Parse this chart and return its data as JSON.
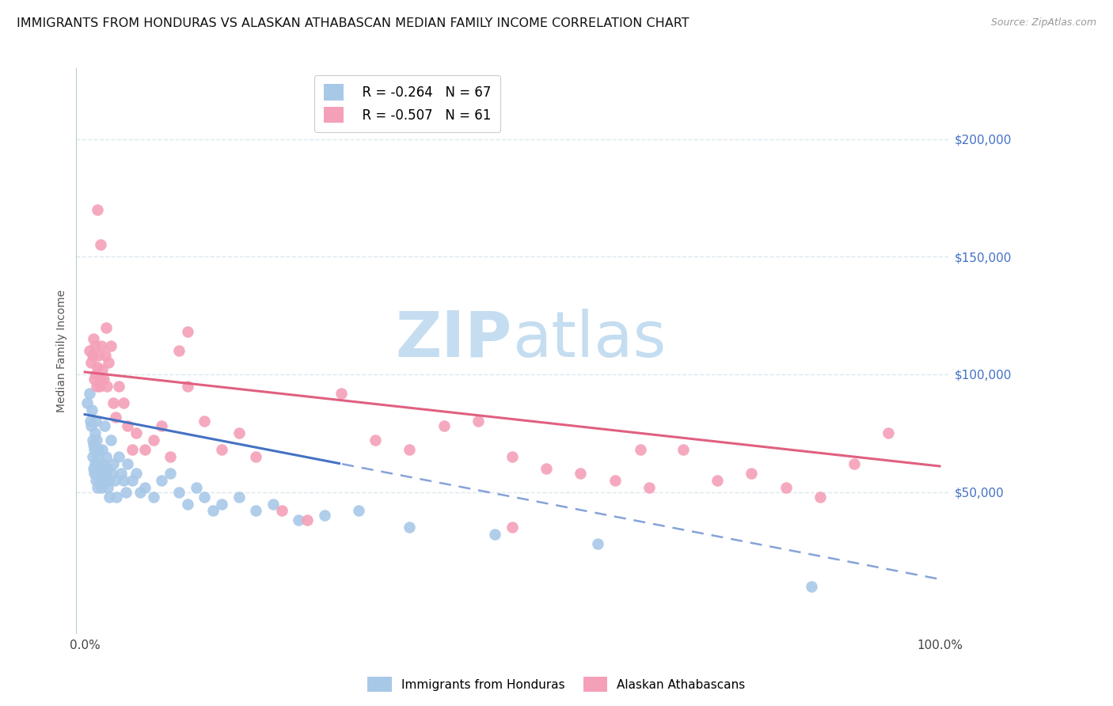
{
  "title": "IMMIGRANTS FROM HONDURAS VS ALASKAN ATHABASCAN MEDIAN FAMILY INCOME CORRELATION CHART",
  "source": "Source: ZipAtlas.com",
  "ylabel": "Median Family Income",
  "legend_label1": "Immigrants from Honduras",
  "legend_label2": "Alaskan Athabascans",
  "r1": -0.264,
  "n1": 67,
  "r2": -0.507,
  "n2": 61,
  "color1": "#a8c8e8",
  "color2": "#f4a0b8",
  "line_color1": "#4472c4",
  "line_color2": "#e06080",
  "xlim": [
    -0.01,
    1.01
  ],
  "ylim": [
    -10000,
    230000
  ],
  "yticks": [
    50000,
    100000,
    150000,
    200000
  ],
  "ytick_labels": [
    "$50,000",
    "$100,000",
    "$150,000",
    "$200,000"
  ],
  "background_color": "#ffffff",
  "grid_color": "#dde8ee",
  "title_fontsize": 11.5,
  "blue_intercept": 83000,
  "blue_slope": -70000,
  "blue_solid_cutoff": 0.3,
  "pink_intercept": 101000,
  "pink_slope": -40000,
  "blue_x": [
    0.003,
    0.005,
    0.006,
    0.007,
    0.008,
    0.009,
    0.009,
    0.01,
    0.01,
    0.011,
    0.011,
    0.012,
    0.012,
    0.013,
    0.013,
    0.014,
    0.014,
    0.015,
    0.015,
    0.016,
    0.016,
    0.017,
    0.018,
    0.019,
    0.02,
    0.021,
    0.022,
    0.023,
    0.024,
    0.025,
    0.026,
    0.027,
    0.028,
    0.029,
    0.03,
    0.031,
    0.033,
    0.035,
    0.037,
    0.04,
    0.042,
    0.045,
    0.048,
    0.05,
    0.055,
    0.06,
    0.065,
    0.07,
    0.08,
    0.09,
    0.1,
    0.11,
    0.12,
    0.13,
    0.14,
    0.15,
    0.16,
    0.18,
    0.2,
    0.22,
    0.25,
    0.28,
    0.32,
    0.38,
    0.48,
    0.6,
    0.85
  ],
  "blue_y": [
    88000,
    92000,
    80000,
    78000,
    85000,
    72000,
    65000,
    70000,
    60000,
    68000,
    58000,
    75000,
    62000,
    80000,
    55000,
    72000,
    58000,
    65000,
    52000,
    68000,
    62000,
    55000,
    58000,
    52000,
    68000,
    62000,
    55000,
    78000,
    58000,
    65000,
    60000,
    52000,
    55000,
    48000,
    72000,
    58000,
    62000,
    55000,
    48000,
    65000,
    58000,
    55000,
    50000,
    62000,
    55000,
    58000,
    50000,
    52000,
    48000,
    55000,
    58000,
    50000,
    45000,
    52000,
    48000,
    42000,
    45000,
    48000,
    42000,
    45000,
    38000,
    40000,
    42000,
    35000,
    32000,
    28000,
    10000
  ],
  "pink_x": [
    0.005,
    0.007,
    0.009,
    0.01,
    0.011,
    0.012,
    0.013,
    0.014,
    0.015,
    0.016,
    0.017,
    0.018,
    0.019,
    0.02,
    0.022,
    0.024,
    0.026,
    0.028,
    0.03,
    0.033,
    0.036,
    0.04,
    0.045,
    0.05,
    0.055,
    0.06,
    0.07,
    0.08,
    0.09,
    0.1,
    0.11,
    0.12,
    0.14,
    0.16,
    0.18,
    0.2,
    0.23,
    0.26,
    0.3,
    0.34,
    0.38,
    0.42,
    0.46,
    0.5,
    0.54,
    0.58,
    0.62,
    0.66,
    0.7,
    0.74,
    0.78,
    0.82,
    0.86,
    0.9,
    0.94,
    0.015,
    0.018,
    0.025,
    0.12,
    0.5,
    0.65
  ],
  "pink_y": [
    110000,
    105000,
    108000,
    115000,
    98000,
    112000,
    100000,
    95000,
    103000,
    108000,
    95000,
    98000,
    112000,
    102000,
    98000,
    108000,
    95000,
    105000,
    112000,
    88000,
    82000,
    95000,
    88000,
    78000,
    68000,
    75000,
    68000,
    72000,
    78000,
    65000,
    110000,
    118000,
    80000,
    68000,
    75000,
    65000,
    42000,
    38000,
    92000,
    72000,
    68000,
    78000,
    80000,
    65000,
    60000,
    58000,
    55000,
    52000,
    68000,
    55000,
    58000,
    52000,
    48000,
    62000,
    75000,
    170000,
    155000,
    120000,
    95000,
    35000,
    68000
  ]
}
